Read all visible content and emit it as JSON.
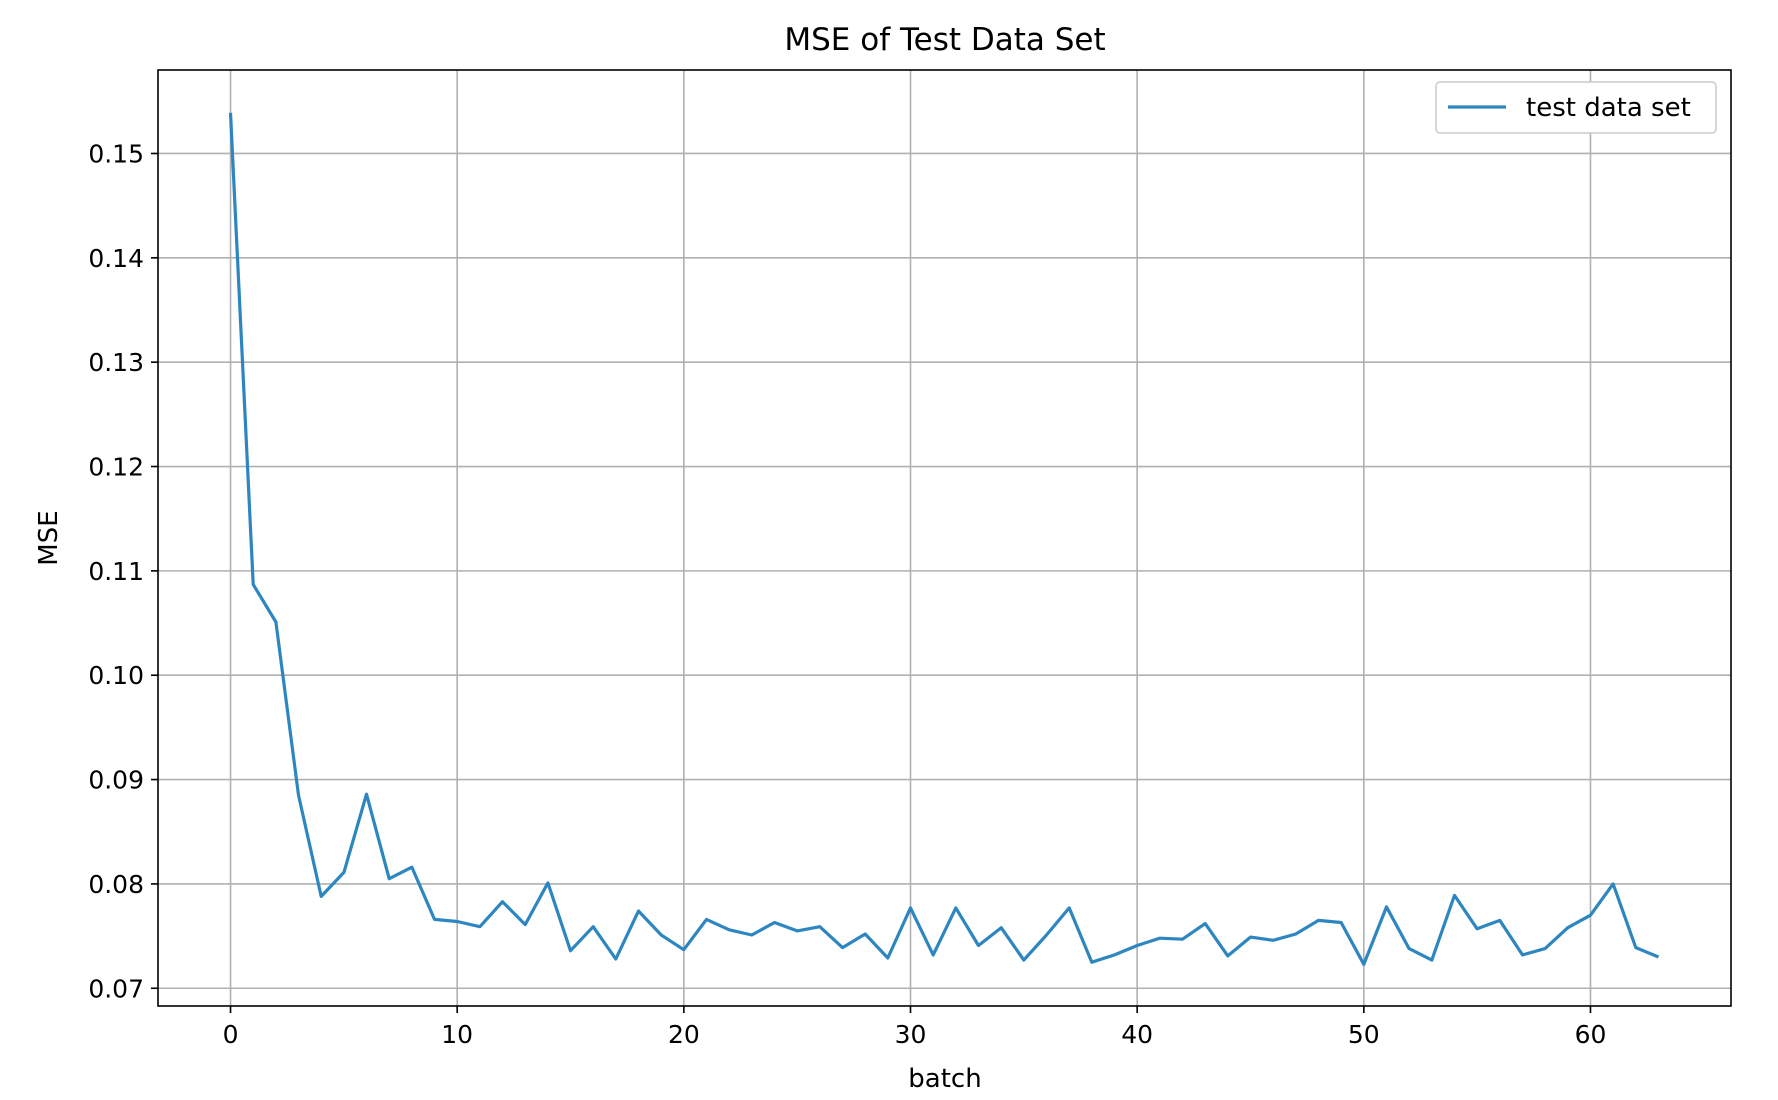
{
  "chart_data": {
    "type": "line",
    "title": "MSE of Test Data Set",
    "xlabel": "batch",
    "ylabel": "MSE",
    "xlim": [
      -3.2,
      66.2
    ],
    "ylim": [
      0.0683,
      0.158
    ],
    "xticks": [
      0,
      10,
      20,
      30,
      40,
      50,
      60
    ],
    "yticks": [
      0.07,
      0.08,
      0.09,
      0.1,
      0.11,
      0.12,
      0.13,
      0.14,
      0.15
    ],
    "xtick_labels": [
      "0",
      "10",
      "20",
      "30",
      "40",
      "50",
      "60"
    ],
    "ytick_labels": [
      "0.07",
      "0.08",
      "0.09",
      "0.10",
      "0.11",
      "0.12",
      "0.13",
      "0.14",
      "0.15"
    ],
    "grid": true,
    "legend": "top-right",
    "series": [
      {
        "name": "test data set",
        "color": "#2e86c1",
        "x": [
          0,
          1,
          2,
          3,
          4,
          5,
          6,
          7,
          8,
          9,
          10,
          11,
          12,
          13,
          14,
          15,
          16,
          17,
          18,
          19,
          20,
          21,
          22,
          23,
          24,
          25,
          26,
          27,
          28,
          29,
          30,
          31,
          32,
          33,
          34,
          35,
          36,
          37,
          38,
          39,
          40,
          41,
          42,
          43,
          44,
          45,
          46,
          47,
          48,
          49,
          50,
          51,
          52,
          53,
          54,
          55,
          56,
          57,
          58,
          59,
          60,
          61,
          62,
          63
        ],
        "y": [
          0.1539,
          0.1087,
          0.1051,
          0.0885,
          0.0788,
          0.0811,
          0.0886,
          0.0805,
          0.0816,
          0.0766,
          0.0764,
          0.0759,
          0.0783,
          0.0761,
          0.0801,
          0.0736,
          0.0759,
          0.0728,
          0.0774,
          0.0751,
          0.0737,
          0.0766,
          0.0756,
          0.0751,
          0.0763,
          0.0755,
          0.0759,
          0.0739,
          0.0752,
          0.0729,
          0.0777,
          0.0732,
          0.0777,
          0.0741,
          0.0758,
          0.0727,
          0.0751,
          0.0777,
          0.0725,
          0.0732,
          0.0741,
          0.0748,
          0.0747,
          0.0762,
          0.0731,
          0.0749,
          0.0746,
          0.0752,
          0.0765,
          0.0763,
          0.0723,
          0.0778,
          0.0738,
          0.0727,
          0.0789,
          0.0757,
          0.0765,
          0.0732,
          0.0738,
          0.0758,
          0.077,
          0.08,
          0.0739,
          0.073
        ]
      }
    ]
  }
}
